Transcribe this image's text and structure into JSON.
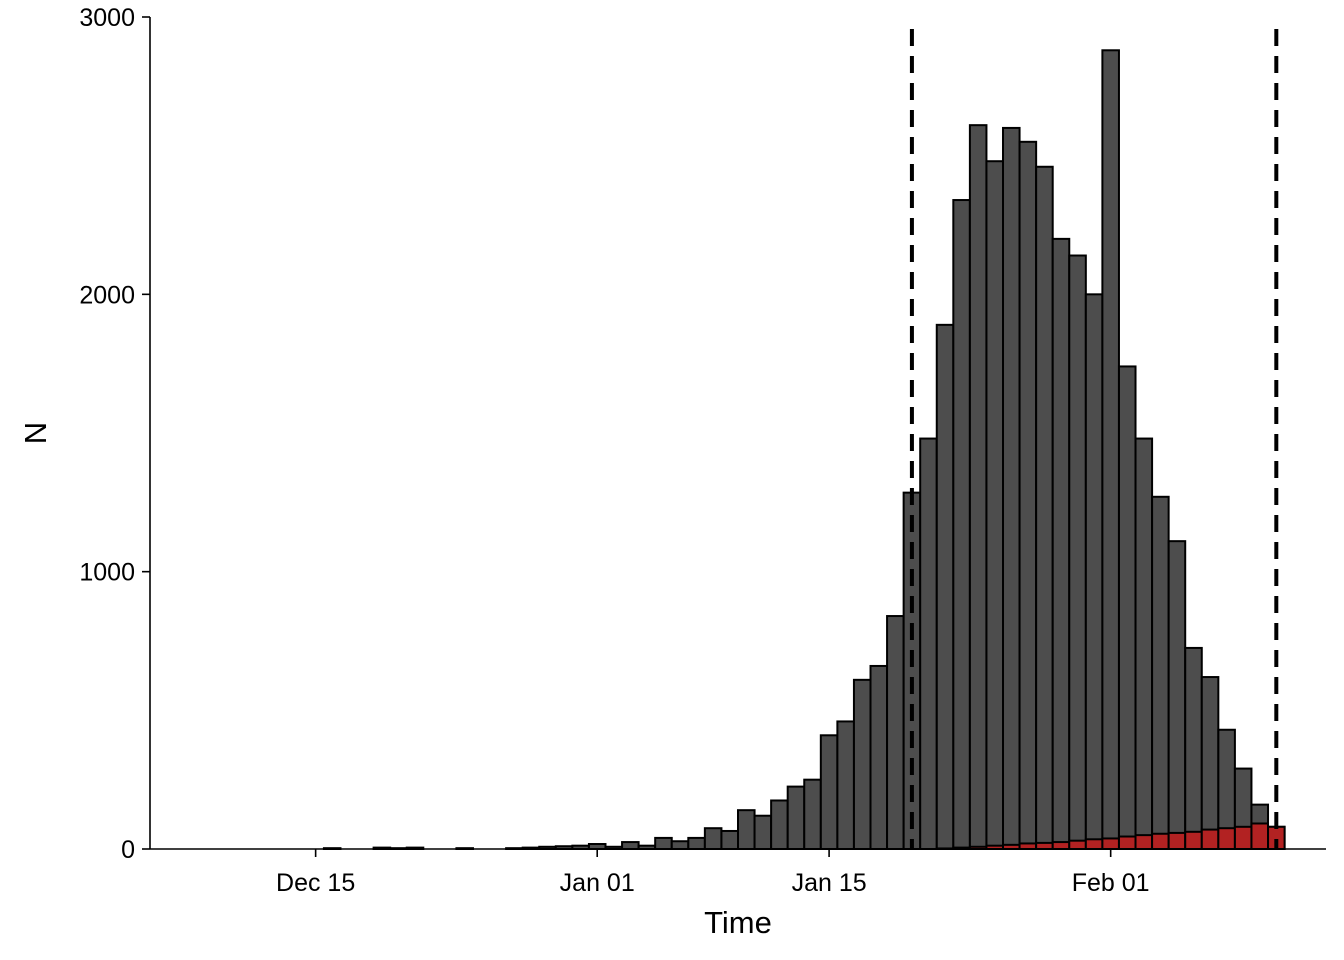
{
  "chart_data": {
    "type": "bar",
    "stacked": false,
    "title": "",
    "xlabel": "Time",
    "ylabel": "N",
    "grid": false,
    "legend": "none",
    "x_tick_labels": [
      {
        "date": "2019-12-15",
        "label": "Dec 15"
      },
      {
        "date": "2020-01-01",
        "label": "Jan 01"
      },
      {
        "date": "2020-01-15",
        "label": "Jan 15"
      },
      {
        "date": "2020-02-01",
        "label": "Feb 01"
      }
    ],
    "y_ticks": [
      0,
      1000,
      2000,
      3000
    ],
    "xlim": [
      "2019-12-05",
      "2020-02-14"
    ],
    "ylim": [
      0,
      3000
    ],
    "reference_lines": [
      {
        "date": "2020-01-20",
        "style": "dashed",
        "color": "#000000"
      },
      {
        "date": "2020-02-11",
        "style": "dashed",
        "color": "#000000"
      }
    ],
    "series": [
      {
        "color": "#4d4d4d",
        "points": [
          [
            "2019-12-16",
            3
          ],
          [
            "2019-12-19",
            5
          ],
          [
            "2019-12-20",
            3
          ],
          [
            "2019-12-21",
            5
          ],
          [
            "2019-12-24",
            3
          ],
          [
            "2019-12-27",
            3
          ],
          [
            "2019-12-28",
            5
          ],
          [
            "2019-12-29",
            8
          ],
          [
            "2019-12-30",
            10
          ],
          [
            "2019-12-31",
            12
          ],
          [
            "2020-01-01",
            18
          ],
          [
            "2020-01-02",
            8
          ],
          [
            "2020-01-03",
            25
          ],
          [
            "2020-01-04",
            12
          ],
          [
            "2020-01-05",
            40
          ],
          [
            "2020-01-06",
            28
          ],
          [
            "2020-01-07",
            40
          ],
          [
            "2020-01-08",
            75
          ],
          [
            "2020-01-09",
            65
          ],
          [
            "2020-01-10",
            140
          ],
          [
            "2020-01-11",
            120
          ],
          [
            "2020-01-12",
            175
          ],
          [
            "2020-01-13",
            225
          ],
          [
            "2020-01-14",
            250
          ],
          [
            "2020-01-15",
            410
          ],
          [
            "2020-01-16",
            460
          ],
          [
            "2020-01-17",
            610
          ],
          [
            "2020-01-18",
            660
          ],
          [
            "2020-01-19",
            840
          ],
          [
            "2020-01-20",
            1285
          ],
          [
            "2020-01-21",
            1480
          ],
          [
            "2020-01-22",
            1890
          ],
          [
            "2020-01-23",
            2340
          ],
          [
            "2020-01-24",
            2610
          ],
          [
            "2020-01-25",
            2480
          ],
          [
            "2020-01-26",
            2600
          ],
          [
            "2020-01-27",
            2550
          ],
          [
            "2020-01-28",
            2460
          ],
          [
            "2020-01-29",
            2200
          ],
          [
            "2020-01-30",
            2140
          ],
          [
            "2020-01-31",
            2000
          ],
          [
            "2020-02-01",
            2880
          ],
          [
            "2020-02-02",
            1740
          ],
          [
            "2020-02-03",
            1480
          ],
          [
            "2020-02-04",
            1270
          ],
          [
            "2020-02-05",
            1110
          ],
          [
            "2020-02-06",
            725
          ],
          [
            "2020-02-07",
            620
          ],
          [
            "2020-02-08",
            430
          ],
          [
            "2020-02-09",
            290
          ],
          [
            "2020-02-10",
            160
          ],
          [
            "2020-02-11",
            80
          ]
        ]
      },
      {
        "color": "#b22222",
        "points": [
          [
            "2020-01-22",
            2
          ],
          [
            "2020-01-23",
            5
          ],
          [
            "2020-01-24",
            8
          ],
          [
            "2020-01-25",
            12
          ],
          [
            "2020-01-26",
            15
          ],
          [
            "2020-01-27",
            20
          ],
          [
            "2020-01-28",
            22
          ],
          [
            "2020-01-29",
            25
          ],
          [
            "2020-01-30",
            30
          ],
          [
            "2020-01-31",
            35
          ],
          [
            "2020-02-01",
            38
          ],
          [
            "2020-02-02",
            45
          ],
          [
            "2020-02-03",
            50
          ],
          [
            "2020-02-04",
            55
          ],
          [
            "2020-02-05",
            58
          ],
          [
            "2020-02-06",
            62
          ],
          [
            "2020-02-07",
            70
          ],
          [
            "2020-02-08",
            75
          ],
          [
            "2020-02-09",
            80
          ],
          [
            "2020-02-10",
            92
          ],
          [
            "2020-02-11",
            80
          ]
        ]
      }
    ]
  }
}
